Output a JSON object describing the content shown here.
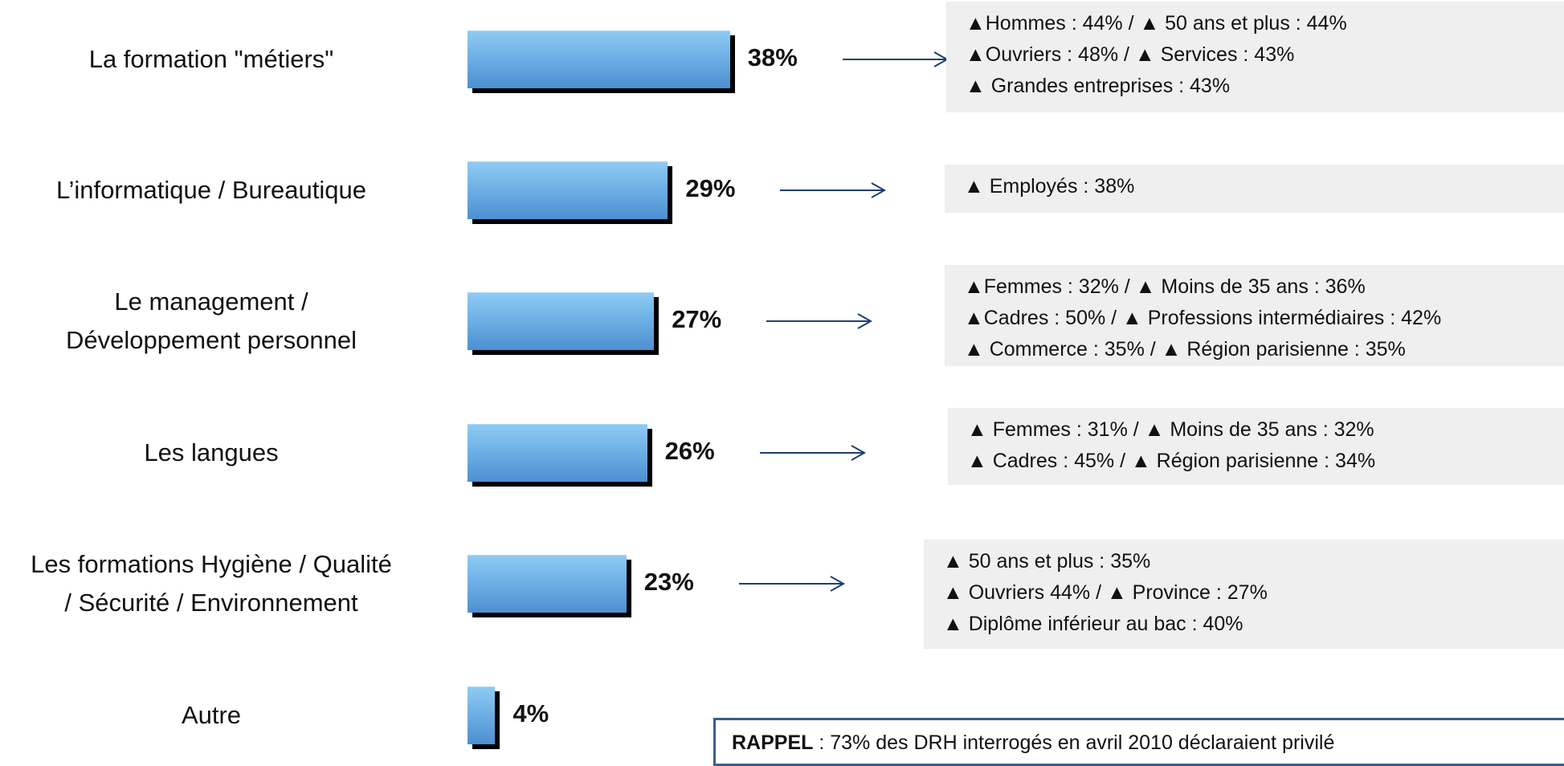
{
  "chart_data": {
    "type": "bar",
    "orientation": "horizontal",
    "categories": [
      "La formation \"métiers\"",
      "L’informatique / Bureautique",
      "Le management / Développement personnel",
      "Les langues",
      "Les formations Hygiène / Qualité / Sécurité / Environnement",
      "Autre"
    ],
    "category_lines": [
      [
        "La formation \"métiers\""
      ],
      [
        "L’informatique / Bureautique"
      ],
      [
        "Le management /",
        "Développement personnel"
      ],
      [
        "Les langues"
      ],
      [
        "Les formations Hygiène / Qualité",
        "/ Sécurité / Environnement"
      ],
      [
        "Autre"
      ]
    ],
    "values": [
      38,
      29,
      27,
      26,
      23,
      4
    ],
    "value_labels": [
      "38%",
      "29%",
      "27%",
      "26%",
      "23%",
      "4%"
    ],
    "xlim": [
      0,
      100
    ],
    "grid": false,
    "colors": {
      "bar_top": "#8fcaf3",
      "bar_bottom": "#4d8fd0",
      "shadow": "#000000",
      "arrow": "#1f3f6e",
      "note_bg": "#efefef"
    }
  },
  "notes": [
    [
      "▲Hommes : 44% / ▲ 50 ans et plus : 44%",
      "▲Ouvriers : 48% / ▲ Services : 43%",
      "▲ Grandes entreprises : 43%"
    ],
    [
      "▲ Employés : 38%"
    ],
    [
      "▲Femmes : 32% / ▲ Moins de 35 ans : 36%",
      "▲Cadres : 50% / ▲ Professions intermédiaires : 42%",
      "▲ Commerce : 35% / ▲ Région parisienne : 35%"
    ],
    [
      "▲ Femmes : 31% / ▲ Moins de 35 ans : 32%",
      "▲ Cadres : 45% / ▲ Région parisienne  : 34%"
    ],
    [
      "▲ 50 ans et plus : 35%",
      "▲ Ouvriers 44% / ▲ Province : 27%",
      "▲ Diplôme inférieur au bac : 40%"
    ]
  ],
  "rappel": {
    "label": "RAPPEL",
    "text": " : 73% des DRH interrogés en avril 2010 déclaraient privilé"
  }
}
